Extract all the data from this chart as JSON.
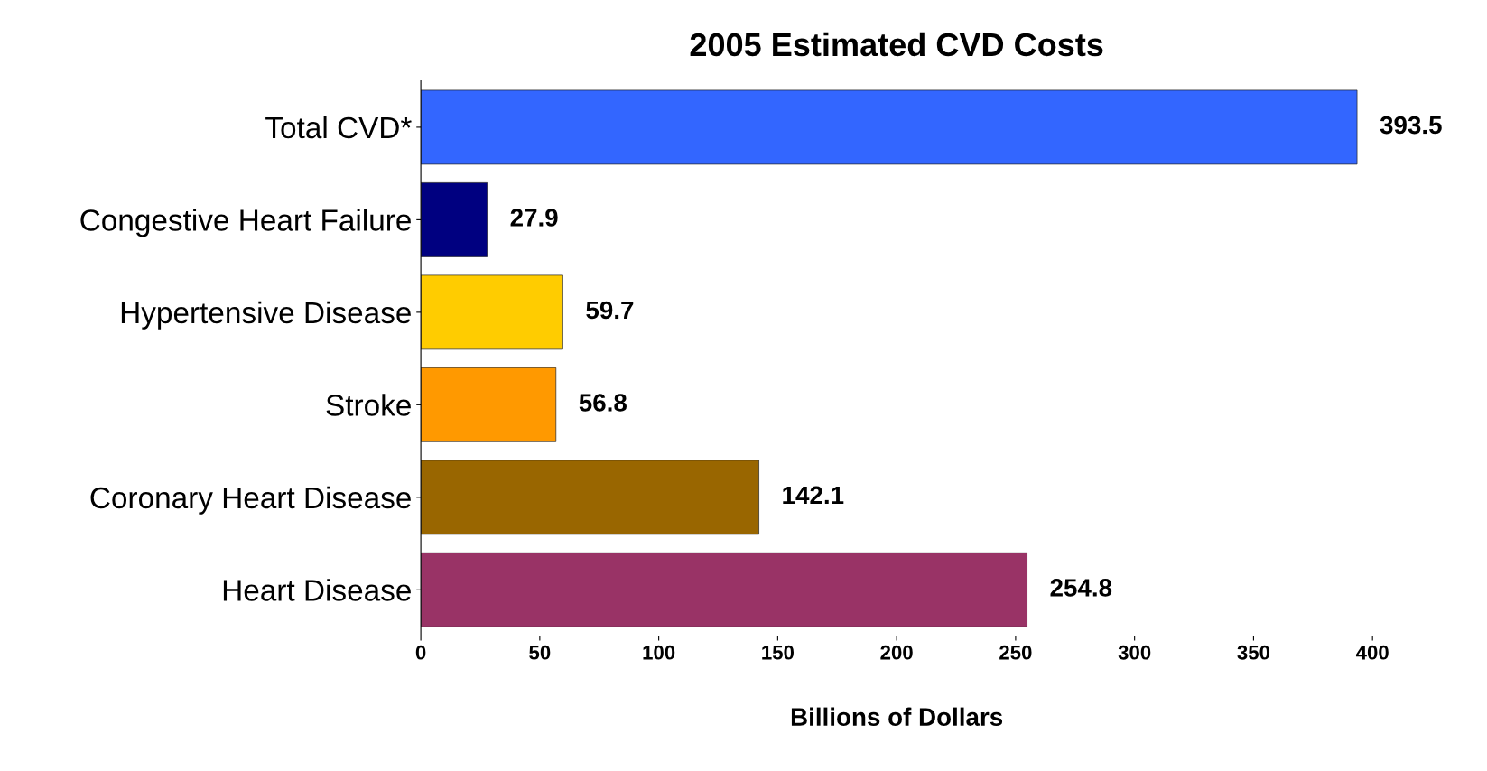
{
  "chart_data": {
    "type": "bar",
    "orientation": "horizontal",
    "title": "2005 Estimated CVD Costs",
    "xlabel": "Billions of Dollars",
    "categories": [
      "Total CVD*",
      "Congestive Heart Failure",
      "Hypertensive Disease",
      "Stroke",
      "Coronary Heart Disease",
      "Heart Disease"
    ],
    "values": [
      393.5,
      27.9,
      59.7,
      56.8,
      142.1,
      254.8
    ],
    "colors": [
      "#3366ff",
      "#000080",
      "#ffcc00",
      "#ff9900",
      "#996600",
      "#993366"
    ],
    "xlim": [
      0,
      400
    ],
    "xticks": [
      0,
      50,
      100,
      150,
      200,
      250,
      300,
      350,
      400
    ],
    "data_labels": true,
    "grid": false,
    "legend": false
  }
}
